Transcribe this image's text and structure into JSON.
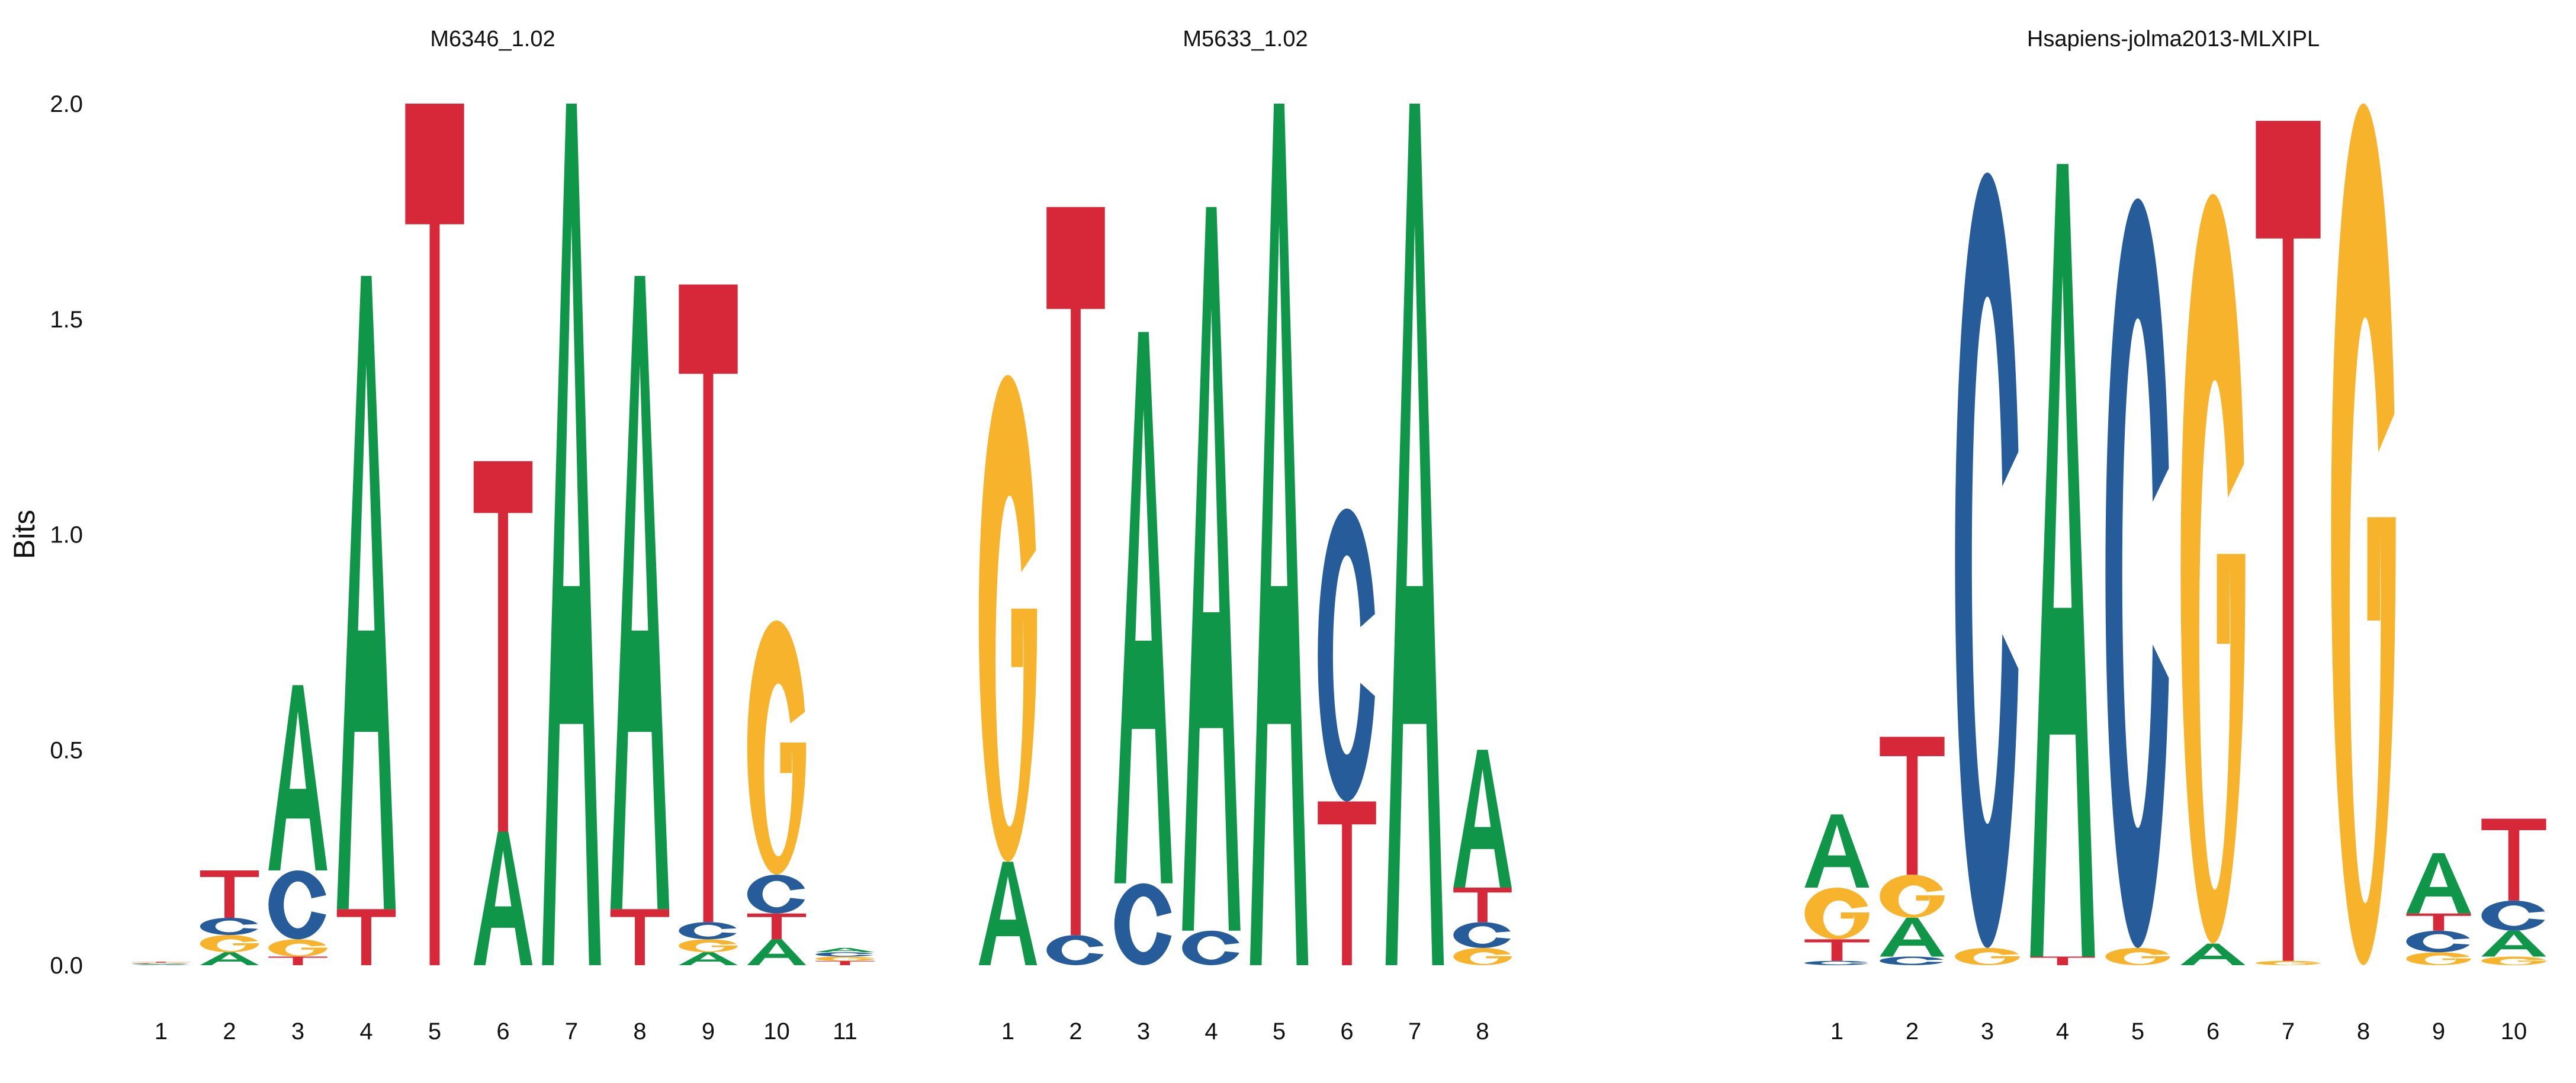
{
  "chart_data": {
    "type": "sequence-logo",
    "ylabel": "Bits",
    "ylim": [
      0,
      2.0
    ],
    "yticks": [
      0.0,
      0.5,
      1.0,
      1.5,
      2.0
    ],
    "ytick_labels": [
      "0.0",
      "0.5",
      "1.0",
      "1.5",
      "2.0"
    ],
    "grid": false,
    "colors": {
      "A": "#109648",
      "C": "#255C99",
      "G": "#F7B32B",
      "T": "#D62839"
    },
    "panels": [
      {
        "title": "M6346_1.02",
        "positions": [
          {
            "pos": "1",
            "stack": [
              [
                "A",
                0.002
              ],
              [
                "C",
                0.002
              ],
              [
                "G",
                0.002
              ],
              [
                "T",
                0.002
              ]
            ]
          },
          {
            "pos": "2",
            "stack": [
              [
                "A",
                0.03
              ],
              [
                "G",
                0.04
              ],
              [
                "C",
                0.04
              ],
              [
                "T",
                0.11
              ]
            ]
          },
          {
            "pos": "3",
            "stack": [
              [
                "T",
                0.02
              ],
              [
                "G",
                0.04
              ],
              [
                "C",
                0.16
              ],
              [
                "A",
                0.43
              ]
            ]
          },
          {
            "pos": "4",
            "stack": [
              [
                "T",
                0.13
              ],
              [
                "A",
                1.47
              ]
            ]
          },
          {
            "pos": "5",
            "stack": [
              [
                "T",
                2.0
              ]
            ]
          },
          {
            "pos": "6",
            "stack": [
              [
                "A",
                0.31
              ],
              [
                "T",
                0.86
              ]
            ]
          },
          {
            "pos": "7",
            "stack": [
              [
                "A",
                2.0
              ]
            ]
          },
          {
            "pos": "8",
            "stack": [
              [
                "T",
                0.13
              ],
              [
                "A",
                1.47
              ]
            ]
          },
          {
            "pos": "9",
            "stack": [
              [
                "A",
                0.03
              ],
              [
                "G",
                0.03
              ],
              [
                "C",
                0.04
              ],
              [
                "T",
                1.48
              ]
            ]
          },
          {
            "pos": "10",
            "stack": [
              [
                "A",
                0.06
              ],
              [
                "T",
                0.06
              ],
              [
                "C",
                0.09
              ],
              [
                "G",
                0.59
              ]
            ]
          },
          {
            "pos": "11",
            "stack": [
              [
                "T",
                0.01
              ],
              [
                "G",
                0.01
              ],
              [
                "C",
                0.01
              ],
              [
                "A",
                0.01
              ]
            ]
          }
        ]
      },
      {
        "title": "M5633_1.02",
        "positions": [
          {
            "pos": "1",
            "stack": [
              [
                "A",
                0.24
              ],
              [
                "G",
                1.13
              ]
            ]
          },
          {
            "pos": "2",
            "stack": [
              [
                "C",
                0.07
              ],
              [
                "T",
                1.69
              ]
            ]
          },
          {
            "pos": "3",
            "stack": [
              [
                "C",
                0.19
              ],
              [
                "A",
                1.28
              ]
            ]
          },
          {
            "pos": "4",
            "stack": [
              [
                "C",
                0.08
              ],
              [
                "A",
                1.68
              ]
            ]
          },
          {
            "pos": "5",
            "stack": [
              [
                "A",
                2.0
              ]
            ]
          },
          {
            "pos": "6",
            "stack": [
              [
                "T",
                0.38
              ],
              [
                "C",
                0.68
              ]
            ]
          },
          {
            "pos": "7",
            "stack": [
              [
                "A",
                2.0
              ]
            ]
          },
          {
            "pos": "8",
            "stack": [
              [
                "G",
                0.04
              ],
              [
                "C",
                0.06
              ],
              [
                "T",
                0.08
              ],
              [
                "A",
                0.32
              ]
            ]
          }
        ]
      },
      {
        "title": "Hsapiens-jolma2013-MLXIPL",
        "positions": [
          {
            "pos": "1",
            "stack": [
              [
                "C",
                0.01
              ],
              [
                "T",
                0.05
              ],
              [
                "G",
                0.12
              ],
              [
                "A",
                0.17
              ]
            ]
          },
          {
            "pos": "2",
            "stack": [
              [
                "C",
                0.02
              ],
              [
                "A",
                0.09
              ],
              [
                "G",
                0.1
              ],
              [
                "T",
                0.32
              ]
            ]
          },
          {
            "pos": "3",
            "stack": [
              [
                "G",
                0.04
              ],
              [
                "C",
                1.8
              ]
            ]
          },
          {
            "pos": "4",
            "stack": [
              [
                "T",
                0.02
              ],
              [
                "A",
                1.84
              ]
            ]
          },
          {
            "pos": "5",
            "stack": [
              [
                "G",
                0.04
              ],
              [
                "C",
                1.74
              ]
            ]
          },
          {
            "pos": "6",
            "stack": [
              [
                "A",
                0.05
              ],
              [
                "G",
                1.74
              ]
            ]
          },
          {
            "pos": "7",
            "stack": [
              [
                "G",
                0.01
              ],
              [
                "T",
                1.95
              ]
            ]
          },
          {
            "pos": "8",
            "stack": [
              [
                "G",
                2.0
              ]
            ]
          },
          {
            "pos": "9",
            "stack": [
              [
                "G",
                0.03
              ],
              [
                "C",
                0.05
              ],
              [
                "T",
                0.04
              ],
              [
                "A",
                0.14
              ]
            ]
          },
          {
            "pos": "10",
            "stack": [
              [
                "G",
                0.02
              ],
              [
                "A",
                0.06
              ],
              [
                "C",
                0.07
              ],
              [
                "T",
                0.19
              ]
            ]
          }
        ]
      }
    ]
  }
}
